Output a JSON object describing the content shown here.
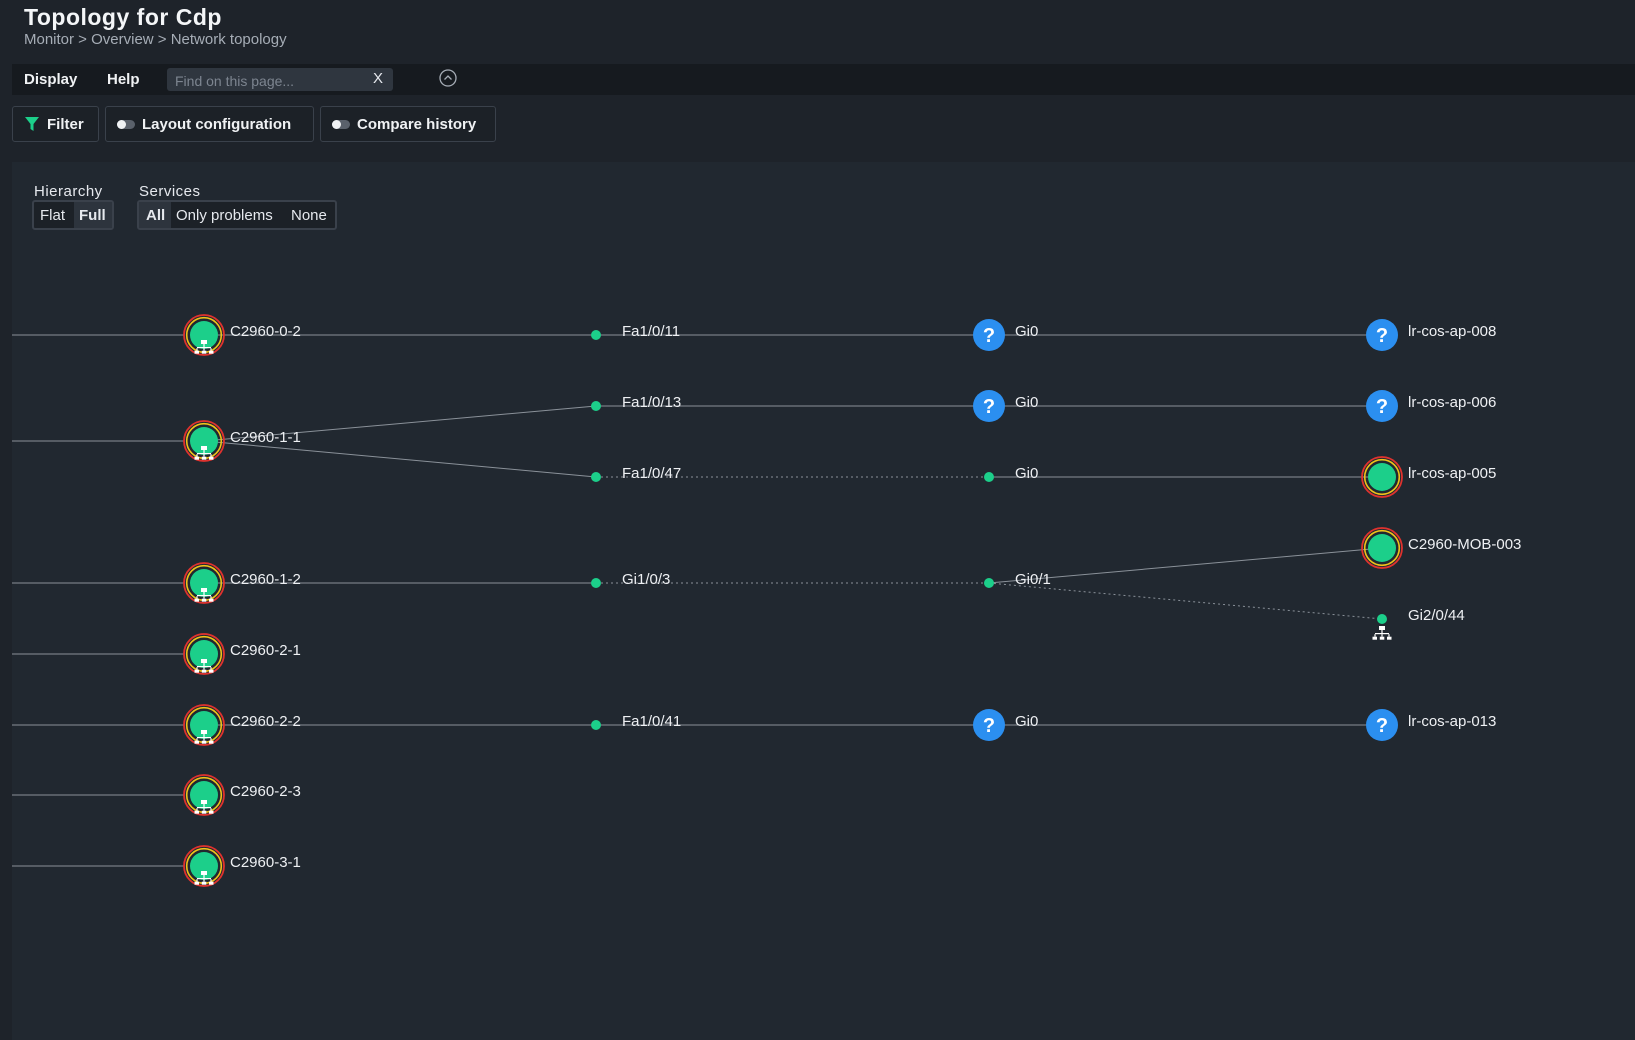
{
  "header": {
    "title": "Topology for Cdp",
    "breadcrumb": "Monitor > Overview > Network topology"
  },
  "menu": {
    "display": "Display",
    "help": "Help",
    "search_placeholder": "Find on this page...",
    "search_clear": "X"
  },
  "toolbar": {
    "filter": "Filter",
    "layout": "Layout configuration",
    "compare": "Compare history"
  },
  "controls": {
    "hierarchy_label": "Hierarchy",
    "hierarchy_options": [
      "Flat",
      "Full"
    ],
    "hierarchy_selected": "Full",
    "services_label": "Services",
    "services_options": [
      "All",
      "Only problems",
      "None"
    ],
    "services_selected": "All"
  },
  "colors": {
    "ok_green": "#1ccf8a",
    "unknown_blue": "#2b8ff0",
    "problem_ring": "#e0322e",
    "warn_ring": "#f0c419"
  },
  "topology": {
    "hosts": [
      {
        "id": "C2960-0-2",
        "label": "C2960-0-2",
        "kind": "switch",
        "state": "ok"
      },
      {
        "id": "C2960-1-1",
        "label": "C2960-1-1",
        "kind": "switch",
        "state": "ok"
      },
      {
        "id": "C2960-1-2",
        "label": "C2960-1-2",
        "kind": "switch",
        "state": "ok"
      },
      {
        "id": "C2960-2-1",
        "label": "C2960-2-1",
        "kind": "switch",
        "state": "ok"
      },
      {
        "id": "C2960-2-2",
        "label": "C2960-2-2",
        "kind": "switch",
        "state": "ok"
      },
      {
        "id": "C2960-2-3",
        "label": "C2960-2-3",
        "kind": "switch",
        "state": "ok"
      },
      {
        "id": "C2960-3-1",
        "label": "C2960-3-1",
        "kind": "switch",
        "state": "ok"
      }
    ],
    "interfaces": [
      {
        "id": "Fa1/0/11",
        "label": "Fa1/0/11",
        "state": "ok",
        "parent": "C2960-0-2"
      },
      {
        "id": "Fa1/0/13",
        "label": "Fa1/0/13",
        "state": "ok",
        "parent": "C2960-1-1"
      },
      {
        "id": "Fa1/0/47",
        "label": "Fa1/0/47",
        "state": "ok",
        "parent": "C2960-1-1"
      },
      {
        "id": "Gi1/0/3",
        "label": "Gi1/0/3",
        "state": "ok",
        "parent": "C2960-1-2"
      },
      {
        "id": "Fa1/0/41",
        "label": "Fa1/0/41",
        "state": "ok",
        "parent": "C2960-2-2"
      }
    ],
    "remote_ports": [
      {
        "id": "Gi0-a",
        "label": "Gi0",
        "state": "unknown"
      },
      {
        "id": "Gi0-b",
        "label": "Gi0",
        "state": "unknown"
      },
      {
        "id": "Gi0-c",
        "label": "Gi0",
        "state": "ok"
      },
      {
        "id": "Gi0/1",
        "label": "Gi0/1",
        "state": "ok"
      },
      {
        "id": "Gi0-d",
        "label": "Gi0",
        "state": "unknown"
      }
    ],
    "remote_hosts": [
      {
        "id": "lr-cos-ap-008",
        "label": "lr-cos-ap-008",
        "state": "unknown"
      },
      {
        "id": "lr-cos-ap-006",
        "label": "lr-cos-ap-006",
        "state": "unknown"
      },
      {
        "id": "lr-cos-ap-005",
        "label": "lr-cos-ap-005",
        "state": "ok"
      },
      {
        "id": "C2960-MOB-003",
        "label": "C2960-MOB-003",
        "state": "ok"
      },
      {
        "id": "Gi2/0/44",
        "label": "Gi2/0/44",
        "state": "ok",
        "kind": "interface"
      },
      {
        "id": "lr-cos-ap-013",
        "label": "lr-cos-ap-013",
        "state": "unknown"
      }
    ],
    "links": [
      {
        "from": "C2960-0-2",
        "to": "Fa1/0/11",
        "style": "solid"
      },
      {
        "from": "Fa1/0/11",
        "to": "Gi0-a",
        "style": "solid"
      },
      {
        "from": "Gi0-a",
        "to": "lr-cos-ap-008",
        "style": "solid"
      },
      {
        "from": "C2960-1-1",
        "to": "Fa1/0/13",
        "style": "solid"
      },
      {
        "from": "Fa1/0/13",
        "to": "Gi0-b",
        "style": "solid"
      },
      {
        "from": "Gi0-b",
        "to": "lr-cos-ap-006",
        "style": "solid"
      },
      {
        "from": "C2960-1-1",
        "to": "Fa1/0/47",
        "style": "solid"
      },
      {
        "from": "Fa1/0/47",
        "to": "Gi0-c",
        "style": "dotted"
      },
      {
        "from": "Gi0-c",
        "to": "lr-cos-ap-005",
        "style": "solid"
      },
      {
        "from": "C2960-1-2",
        "to": "Gi1/0/3",
        "style": "solid"
      },
      {
        "from": "Gi1/0/3",
        "to": "Gi0/1",
        "style": "dotted"
      },
      {
        "from": "Gi0/1",
        "to": "C2960-MOB-003",
        "style": "solid"
      },
      {
        "from": "Gi0/1",
        "to": "Gi2/0/44",
        "style": "dotted"
      },
      {
        "from": "C2960-2-2",
        "to": "Fa1/0/41",
        "style": "solid"
      },
      {
        "from": "Fa1/0/41",
        "to": "Gi0-d",
        "style": "solid"
      },
      {
        "from": "Gi0-d",
        "to": "lr-cos-ap-013",
        "style": "solid"
      }
    ]
  }
}
